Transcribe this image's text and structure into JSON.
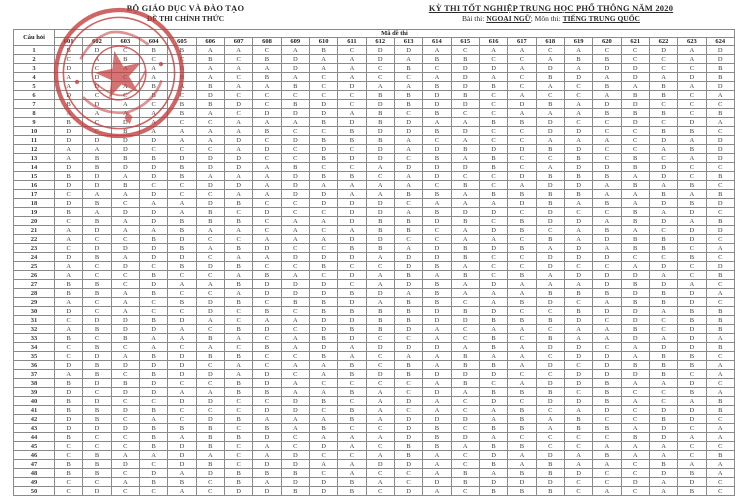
{
  "header_left": {
    "ministry": "BỘ GIÁO DỤC VÀ ĐÀO TẠO",
    "official": "ĐỀ THI CHÍNH THỨC"
  },
  "header_right": {
    "title": "KỲ THI TỐT NGHIỆP TRUNG HỌC PHỔ THÔNG NĂM 2020",
    "subtitle_prefix": "Bài thi: ",
    "subtitle_exam": "NGOẠI NGỮ",
    "subtitle_mid": "; Môn thi: ",
    "subtitle_subject": "TIẾNG TRUNG QUỐC"
  },
  "stamp": {
    "color": "#c43a3a"
  },
  "table": {
    "question_header": "Câu hỏi",
    "code_header": "Mã đề thi",
    "codes": [
      "601",
      "602",
      "603",
      "604",
      "605",
      "606",
      "607",
      "608",
      "609",
      "610",
      "611",
      "612",
      "613",
      "614",
      "615",
      "616",
      "617",
      "618",
      "619",
      "620",
      "621",
      "622",
      "623",
      "624"
    ],
    "rows": [
      {
        "q": "1",
        "answers": "BDCBBAACABCDDACAACACCDAD"
      },
      {
        "q": "2",
        "answers": "CABCCBCBDAADABBCCABBCCAD"
      },
      {
        "q": "3",
        "answers": "DCAABAAADAACBCDDADADDCCB"
      },
      {
        "q": "4",
        "answers": "ADCABACBACACCADACBDADADB"
      },
      {
        "q": "5",
        "answers": "ADABABAABCDAABDBCACBABAD"
      },
      {
        "q": "6",
        "answers": "DCCBCDCCCCCBBDBCACCABBCA"
      },
      {
        "q": "7",
        "answers": "BDACBBDCBDCDBDDCDBADDCCC"
      },
      {
        "q": "8",
        "answers": "AAAABACDDDABCBCCAAABBBCB"
      },
      {
        "q": "9",
        "answers": "BCDACCAAABDBDAABBDCCDCDA"
      },
      {
        "q": "10",
        "answers": "DCBAAAABCCBDDBDCCDDCCBBC"
      },
      {
        "q": "11",
        "answers": "DDDDAADCDBBBACACCAAACDAD"
      },
      {
        "q": "12",
        "answers": "AADCCCADCDCDADBDDBDCCABD"
      },
      {
        "q": "13",
        "answers": "ABBBDDDCCBDDCBABCCBCBCAD"
      },
      {
        "q": "14",
        "answers": "DBDDBDDABCCADDDBCADDBDCC"
      },
      {
        "q": "15",
        "answers": "BDADBAAADBBCADCCDBBBADCB"
      },
      {
        "q": "16",
        "answers": "DDBCCDDADAAAACBCADDABABC"
      },
      {
        "q": "17",
        "answers": "CAADCCAADDAABBABBBBAABAB"
      },
      {
        "q": "18",
        "answers": "DBCAADBCCDDDCAAADBABADBD"
      },
      {
        "q": "19",
        "answers": "BADDABCDCCDDABDDCDCCBADC"
      },
      {
        "q": "20",
        "answers": "CBADBBBCAADBBDBCBDDABDAB"
      },
      {
        "q": "21",
        "answers": "ADAABAACACABBCADBCABACDD"
      },
      {
        "q": "22",
        "answers": "ACCBDCCAAADDCCAACBADBBDC"
      },
      {
        "q": "23",
        "answers": "CDDDBABDCCBBADBDBADABBCA"
      },
      {
        "q": "24",
        "answers": "DBADDCAADDDADDBCCDDDCCBC"
      },
      {
        "q": "25",
        "answers": "ACDCBDBCCBCCDBACCDCCADCD"
      },
      {
        "q": "26",
        "answers": "ACCBCCABACDABABCBADDDACB"
      },
      {
        "q": "27",
        "answers": "BBCDAABDDDCADBADAAADBDAC"
      },
      {
        "q": "28",
        "answers": "BBABCCADDDBDABAAABBBDBDA"
      },
      {
        "q": "29",
        "answers": "ACACBDBCBBDABBCABDCABBDC"
      },
      {
        "q": "30",
        "answers": "DCACCDCBCBBBBDBDCCBDDABB"
      },
      {
        "q": "31",
        "answers": "CDDBDACAADDBBDDBBBDCDCBB"
      },
      {
        "q": "32",
        "answers": "ABDDACBDCDBBDACAACAABCDB"
      },
      {
        "q": "33",
        "answers": "BCBAABACABDCCACBCBAADADA"
      },
      {
        "q": "34",
        "answers": "CBCACACBADADDDABADDCADDB"
      },
      {
        "q": "35",
        "answers": "CDABDBBCCBACAABAACDDABBC"
      },
      {
        "q": "36",
        "answers": "DBDDDCACAABCBABBADCDBBBA"
      },
      {
        "q": "37",
        "answers": "ABCBDDADCABDBDDDCCDDDBCA"
      },
      {
        "q": "38",
        "answers": "BDBDCCBDACCCCABCADDBAADC"
      },
      {
        "q": "39",
        "answers": "DCDDAABBAABACDABBBCBCCBA"
      },
      {
        "q": "40",
        "answers": "BDCCDDCCDBCADACDCDDBACAB"
      },
      {
        "q": "41",
        "answers": "BBDBCCCDDCBACACABCADCDDB"
      },
      {
        "q": "42",
        "answers": "DBCACDBAAABADDDABABCCBDC"
      },
      {
        "q": "43",
        "answers": "DDDBBBCBABCCDBCBBABBADCA"
      },
      {
        "q": "44",
        "answers": "BCCBABBDCAAADBDACCCCBDAA"
      },
      {
        "q": "45",
        "answers": "CCCBDBCACDACBBABBCCAAACC"
      },
      {
        "q": "46",
        "answers": "CBAADACADCCABACDADABAACB"
      },
      {
        "q": "47",
        "answers": "BBDCDBCDDAADDACBABAACBAA"
      },
      {
        "q": "48",
        "answers": "BBCDADBBBCACCABABBDCCDBA"
      },
      {
        "q": "49",
        "answers": "CCABBCBADDBACDBDDDCCDADC"
      },
      {
        "q": "50",
        "answers": "CDCCACDDBDBCDACBBBCACABC"
      }
    ]
  }
}
